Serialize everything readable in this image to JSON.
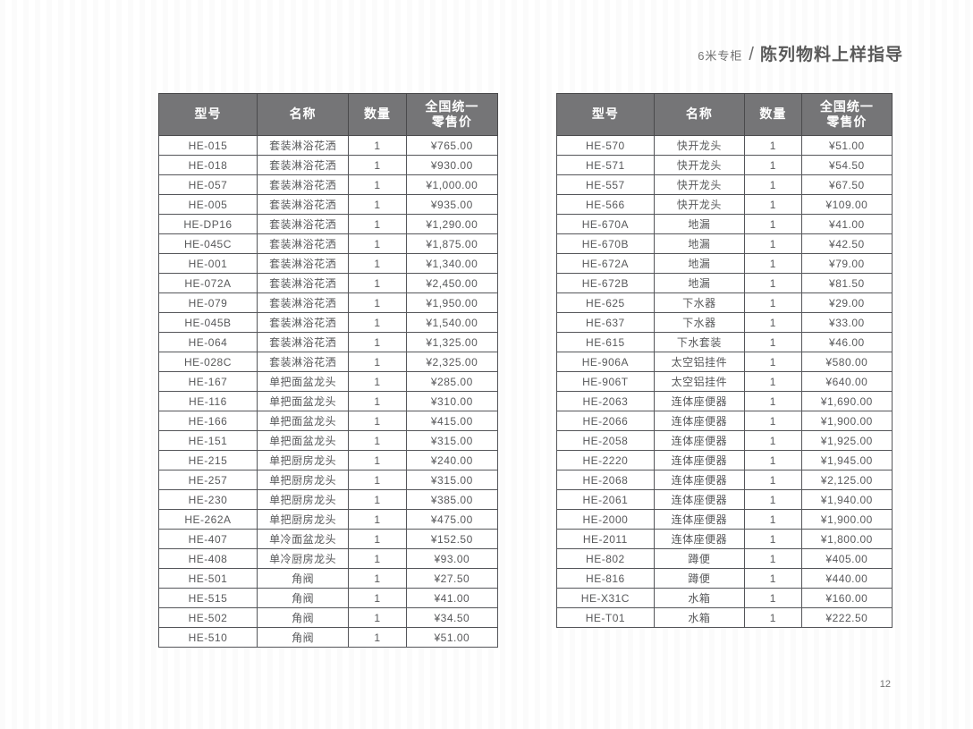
{
  "document": {
    "header": {
      "section": "6米专柜",
      "separator": "/",
      "title": "陈列物料上样指导"
    },
    "page_number": "12"
  },
  "colors": {
    "table_header_bg": "#757577",
    "table_header_text": "#ffffff",
    "table_border": "#55565a",
    "body_text": "#58595b",
    "title_text": "#595959"
  },
  "left_table": {
    "columns": [
      "型号",
      "名称",
      "数量",
      "全国统一\n零售价"
    ],
    "rows": [
      [
        "HE-015",
        "套装淋浴花洒",
        "1",
        "¥765.00"
      ],
      [
        "HE-018",
        "套装淋浴花洒",
        "1",
        "¥930.00"
      ],
      [
        "HE-057",
        "套装淋浴花洒",
        "1",
        "¥1,000.00"
      ],
      [
        "HE-005",
        "套装淋浴花洒",
        "1",
        "¥935.00"
      ],
      [
        "HE-DP16",
        "套装淋浴花洒",
        "1",
        "¥1,290.00"
      ],
      [
        "HE-045C",
        "套装淋浴花洒",
        "1",
        "¥1,875.00"
      ],
      [
        "HE-001",
        "套装淋浴花洒",
        "1",
        "¥1,340.00"
      ],
      [
        "HE-072A",
        "套装淋浴花洒",
        "1",
        "¥2,450.00"
      ],
      [
        "HE-079",
        "套装淋浴花洒",
        "1",
        "¥1,950.00"
      ],
      [
        "HE-045B",
        "套装淋浴花洒",
        "1",
        "¥1,540.00"
      ],
      [
        "HE-064",
        "套装淋浴花洒",
        "1",
        "¥1,325.00"
      ],
      [
        "HE-028C",
        "套装淋浴花洒",
        "1",
        "¥2,325.00"
      ],
      [
        "HE-167",
        "单把面盆龙头",
        "1",
        "¥285.00"
      ],
      [
        "HE-116",
        "单把面盆龙头",
        "1",
        "¥310.00"
      ],
      [
        "HE-166",
        "单把面盆龙头",
        "1",
        "¥415.00"
      ],
      [
        "HE-151",
        "单把面盆龙头",
        "1",
        "¥315.00"
      ],
      [
        "HE-215",
        "单把厨房龙头",
        "1",
        "¥240.00"
      ],
      [
        "HE-257",
        "单把厨房龙头",
        "1",
        "¥315.00"
      ],
      [
        "HE-230",
        "单把厨房龙头",
        "1",
        "¥385.00"
      ],
      [
        "HE-262A",
        "单把厨房龙头",
        "1",
        "¥475.00"
      ],
      [
        "HE-407",
        "单冷面盆龙头",
        "1",
        "¥152.50"
      ],
      [
        "HE-408",
        "单冷厨房龙头",
        "1",
        "¥93.00"
      ],
      [
        "HE-501",
        "角阀",
        "1",
        "¥27.50"
      ],
      [
        "HE-515",
        "角阀",
        "1",
        "¥41.00"
      ],
      [
        "HE-502",
        "角阀",
        "1",
        "¥34.50"
      ],
      [
        "HE-510",
        "角阀",
        "1",
        "¥51.00"
      ]
    ]
  },
  "right_table": {
    "columns": [
      "型号",
      "名称",
      "数量",
      "全国统一\n零售价"
    ],
    "rows": [
      [
        "HE-570",
        "快开龙头",
        "1",
        "¥51.00"
      ],
      [
        "HE-571",
        "快开龙头",
        "1",
        "¥54.50"
      ],
      [
        "HE-557",
        "快开龙头",
        "1",
        "¥67.50"
      ],
      [
        "HE-566",
        "快开龙头",
        "1",
        "¥109.00"
      ],
      [
        "HE-670A",
        "地漏",
        "1",
        "¥41.00"
      ],
      [
        "HE-670B",
        "地漏",
        "1",
        "¥42.50"
      ],
      [
        "HE-672A",
        "地漏",
        "1",
        "¥79.00"
      ],
      [
        "HE-672B",
        "地漏",
        "1",
        "¥81.50"
      ],
      [
        "HE-625",
        "下水器",
        "1",
        "¥29.00"
      ],
      [
        "HE-637",
        "下水器",
        "1",
        "¥33.00"
      ],
      [
        "HE-615",
        "下水套装",
        "1",
        "¥46.00"
      ],
      [
        "HE-906A",
        "太空铝挂件",
        "1",
        "¥580.00"
      ],
      [
        "HE-906T",
        "太空铝挂件",
        "1",
        "¥640.00"
      ],
      [
        "HE-2063",
        "连体座便器",
        "1",
        "¥1,690.00"
      ],
      [
        "HE-2066",
        "连体座便器",
        "1",
        "¥1,900.00"
      ],
      [
        "HE-2058",
        "连体座便器",
        "1",
        "¥1,925.00"
      ],
      [
        "HE-2220",
        "连体座便器",
        "1",
        "¥1,945.00"
      ],
      [
        "HE-2068",
        "连体座便器",
        "1",
        "¥2,125.00"
      ],
      [
        "HE-2061",
        "连体座便器",
        "1",
        "¥1,940.00"
      ],
      [
        "HE-2000",
        "连体座便器",
        "1",
        "¥1,900.00"
      ],
      [
        "HE-2011",
        "连体座便器",
        "1",
        "¥1,800.00"
      ],
      [
        "HE-802",
        "蹲便",
        "1",
        "¥405.00"
      ],
      [
        "HE-816",
        "蹲便",
        "1",
        "¥440.00"
      ],
      [
        "HE-X31C",
        "水箱",
        "1",
        "¥160.00"
      ],
      [
        "HE-T01",
        "水箱",
        "1",
        "¥222.50"
      ]
    ]
  }
}
